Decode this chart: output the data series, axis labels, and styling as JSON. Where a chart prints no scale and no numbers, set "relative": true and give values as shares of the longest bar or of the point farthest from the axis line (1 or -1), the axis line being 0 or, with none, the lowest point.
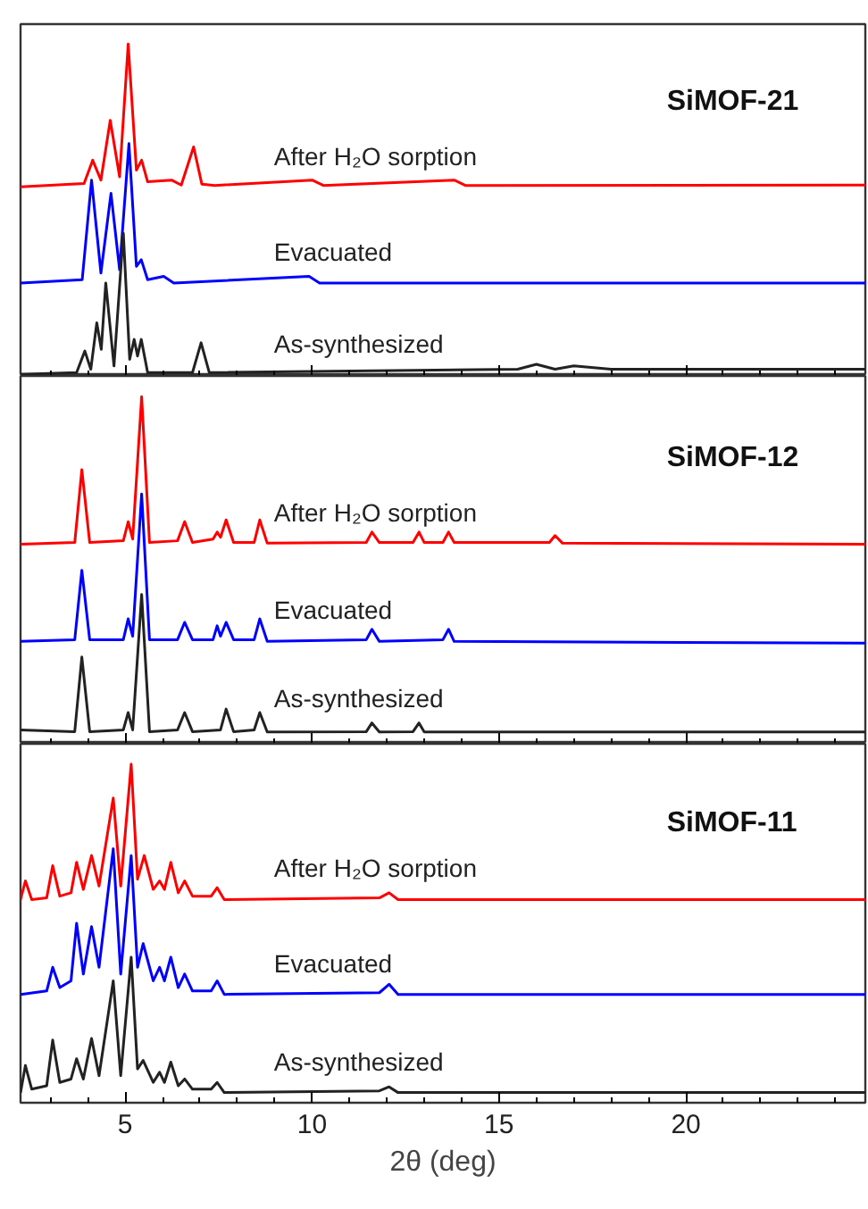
{
  "chart_data": [
    {
      "type": "line",
      "title": "SiMOF-21",
      "relative": true,
      "tick_labels": false,
      "xlim": [
        2.2,
        24.8
      ],
      "xticks": [
        {
          "value": 3,
          "label": null
        },
        {
          "value": 4,
          "label": null
        },
        5,
        {
          "value": 6,
          "label": null
        },
        {
          "value": 7,
          "label": null
        },
        {
          "value": 8,
          "label": null
        },
        {
          "value": 9,
          "label": null
        },
        10,
        {
          "value": 11,
          "label": null
        },
        {
          "value": 12,
          "label": null
        },
        {
          "value": 13,
          "label": null
        },
        {
          "value": 14,
          "label": null
        },
        15,
        {
          "value": 16,
          "label": null
        },
        {
          "value": 17,
          "label": null
        },
        {
          "value": 18,
          "label": null
        },
        {
          "value": 19,
          "label": null
        },
        20,
        {
          "value": 21,
          "label": null
        },
        {
          "value": 22,
          "label": null
        },
        {
          "value": 23,
          "label": null
        },
        {
          "value": 24,
          "label": null
        }
      ],
      "series": [
        {
          "name": "After H₂O sorption",
          "color": "#ff0000",
          "x": [
            2.2,
            3.9,
            4.13,
            4.35,
            4.6,
            4.85,
            5.08,
            5.3,
            5.44,
            5.6,
            6.24,
            6.5,
            6.83,
            7.05,
            7.4,
            10.0,
            10.3,
            13.8,
            14.1,
            24.8
          ],
          "values": [
            0.57,
            0.58,
            0.65,
            0.59,
            0.77,
            0.6,
            1.0,
            0.62,
            0.65,
            0.585,
            0.59,
            0.575,
            0.69,
            0.578,
            0.574,
            0.59,
            0.574,
            0.59,
            0.574,
            0.575
          ]
        },
        {
          "name": "Evacuated",
          "color": "#0000ff",
          "x": [
            2.2,
            3.85,
            4.1,
            4.35,
            4.62,
            4.85,
            5.1,
            5.3,
            5.43,
            5.6,
            6.03,
            6.3,
            9.92,
            10.2,
            24.8
          ],
          "values": [
            0.28,
            0.29,
            0.59,
            0.31,
            0.55,
            0.32,
            0.7,
            0.33,
            0.35,
            0.29,
            0.3,
            0.28,
            0.3,
            0.28,
            0.28
          ]
        },
        {
          "name": "As-synthesized",
          "color": "#222222",
          "x": [
            2.2,
            3.7,
            3.92,
            4.08,
            4.24,
            4.36,
            4.48,
            4.7,
            4.95,
            5.12,
            5.24,
            5.33,
            5.43,
            5.6,
            6.8,
            7.03,
            7.25,
            15.5,
            16.0,
            16.5,
            17.0,
            18.0,
            24.8
          ],
          "values": [
            0.005,
            0.01,
            0.075,
            0.02,
            0.16,
            0.08,
            0.28,
            0.03,
            0.43,
            0.05,
            0.11,
            0.06,
            0.11,
            0.01,
            0.01,
            0.1,
            0.01,
            0.02,
            0.035,
            0.02,
            0.03,
            0.02,
            0.02
          ]
        }
      ]
    },
    {
      "type": "line",
      "title": "SiMOF-12",
      "relative": true,
      "tick_labels": false,
      "xlim": [
        2.2,
        24.8
      ],
      "xticks": [
        {
          "value": 3,
          "label": null
        },
        {
          "value": 4,
          "label": null
        },
        5,
        {
          "value": 6,
          "label": null
        },
        {
          "value": 7,
          "label": null
        },
        {
          "value": 8,
          "label": null
        },
        {
          "value": 9,
          "label": null
        },
        10,
        {
          "value": 11,
          "label": null
        },
        {
          "value": 12,
          "label": null
        },
        {
          "value": 13,
          "label": null
        },
        {
          "value": 14,
          "label": null
        },
        15,
        {
          "value": 16,
          "label": null
        },
        {
          "value": 17,
          "label": null
        },
        {
          "value": 18,
          "label": null
        },
        {
          "value": 19,
          "label": null
        },
        20,
        {
          "value": 21,
          "label": null
        },
        {
          "value": 22,
          "label": null
        },
        {
          "value": 23,
          "label": null
        },
        {
          "value": 24,
          "label": null
        }
      ],
      "series": [
        {
          "name": "After H₂O sorption",
          "color": "#ff0000",
          "x": [
            2.2,
            3.65,
            3.84,
            4.05,
            4.95,
            5.08,
            5.2,
            5.44,
            5.65,
            6.4,
            6.59,
            6.8,
            7.35,
            7.46,
            7.55,
            7.7,
            7.9,
            8.45,
            8.6,
            8.8,
            11.45,
            11.6,
            11.8,
            12.7,
            12.86,
            13.0,
            13.5,
            13.65,
            13.8,
            16.35,
            16.5,
            16.7,
            24.8
          ],
          "values": [
            0.575,
            0.58,
            0.79,
            0.58,
            0.585,
            0.64,
            0.59,
            1.0,
            0.58,
            0.585,
            0.64,
            0.58,
            0.59,
            0.61,
            0.595,
            0.645,
            0.58,
            0.58,
            0.645,
            0.578,
            0.58,
            0.61,
            0.58,
            0.58,
            0.61,
            0.58,
            0.58,
            0.61,
            0.58,
            0.58,
            0.6,
            0.578,
            0.575
          ]
        },
        {
          "name": "Evacuated",
          "color": "#0000ff",
          "x": [
            2.2,
            3.65,
            3.84,
            4.05,
            4.95,
            5.08,
            5.2,
            5.44,
            5.65,
            6.4,
            6.59,
            6.8,
            7.35,
            7.46,
            7.55,
            7.7,
            7.9,
            8.45,
            8.6,
            8.8,
            11.45,
            11.6,
            11.8,
            13.5,
            13.65,
            13.8,
            24.8
          ],
          "values": [
            0.295,
            0.3,
            0.5,
            0.3,
            0.3,
            0.36,
            0.31,
            0.72,
            0.3,
            0.3,
            0.35,
            0.3,
            0.3,
            0.34,
            0.31,
            0.35,
            0.3,
            0.3,
            0.36,
            0.295,
            0.3,
            0.33,
            0.295,
            0.3,
            0.33,
            0.295,
            0.29
          ]
        },
        {
          "name": "As-synthesized",
          "color": "#222222",
          "x": [
            2.2,
            3.65,
            3.84,
            4.05,
            4.95,
            5.08,
            5.2,
            5.44,
            5.65,
            6.4,
            6.59,
            6.8,
            7.55,
            7.7,
            7.9,
            8.45,
            8.6,
            8.8,
            11.45,
            11.6,
            11.8,
            12.7,
            12.86,
            13.0,
            24.8
          ],
          "values": [
            0.04,
            0.035,
            0.25,
            0.035,
            0.04,
            0.09,
            0.04,
            0.43,
            0.035,
            0.04,
            0.09,
            0.035,
            0.04,
            0.1,
            0.035,
            0.04,
            0.09,
            0.034,
            0.035,
            0.06,
            0.034,
            0.035,
            0.06,
            0.034,
            0.034
          ]
        }
      ]
    },
    {
      "type": "line",
      "title": "SiMOF-11",
      "relative": true,
      "tick_labels": "x",
      "xlabel": "2θ (deg)",
      "xlim": [
        2.2,
        24.8
      ],
      "xticks": [
        {
          "value": 3,
          "label": null
        },
        {
          "value": 4,
          "label": null
        },
        5,
        {
          "value": 6,
          "label": null
        },
        {
          "value": 7,
          "label": null
        },
        {
          "value": 8,
          "label": null
        },
        {
          "value": 9,
          "label": null
        },
        10,
        {
          "value": 11,
          "label": null
        },
        {
          "value": 12,
          "label": null
        },
        {
          "value": 13,
          "label": null
        },
        {
          "value": 14,
          "label": null
        },
        15,
        {
          "value": 16,
          "label": null
        },
        {
          "value": 17,
          "label": null
        },
        {
          "value": 18,
          "label": null
        },
        {
          "value": 19,
          "label": null
        },
        20,
        {
          "value": 21,
          "label": null
        },
        {
          "value": 22,
          "label": null
        },
        {
          "value": 23,
          "label": null
        },
        {
          "value": 24,
          "label": null
        }
      ],
      "series": [
        {
          "name": "After H₂O sorption",
          "color": "#ff0000",
          "x": [
            2.2,
            2.33,
            2.5,
            2.9,
            3.06,
            3.25,
            3.55,
            3.7,
            3.88,
            4.1,
            4.3,
            4.68,
            4.88,
            5.16,
            5.33,
            5.51,
            5.75,
            5.92,
            6.05,
            6.22,
            6.42,
            6.59,
            6.8,
            7.3,
            7.46,
            7.65,
            11.8,
            12.06,
            12.3,
            24.8
          ],
          "values": [
            0.6,
            0.655,
            0.6,
            0.605,
            0.7,
            0.61,
            0.62,
            0.71,
            0.63,
            0.73,
            0.64,
            0.9,
            0.64,
            1.0,
            0.66,
            0.73,
            0.63,
            0.655,
            0.63,
            0.71,
            0.62,
            0.655,
            0.61,
            0.61,
            0.635,
            0.6,
            0.605,
            0.62,
            0.6,
            0.6
          ]
        },
        {
          "name": "Evacuated",
          "color": "#0000ff",
          "x": [
            2.2,
            2.9,
            3.06,
            3.25,
            3.55,
            3.7,
            3.88,
            4.1,
            4.3,
            4.68,
            4.88,
            5.16,
            5.33,
            5.48,
            5.75,
            5.92,
            6.05,
            6.22,
            6.42,
            6.59,
            6.8,
            7.3,
            7.46,
            7.65,
            11.8,
            12.06,
            12.3,
            24.8
          ],
          "values": [
            0.32,
            0.33,
            0.4,
            0.34,
            0.36,
            0.53,
            0.38,
            0.52,
            0.4,
            0.75,
            0.38,
            0.73,
            0.4,
            0.47,
            0.36,
            0.4,
            0.36,
            0.43,
            0.34,
            0.38,
            0.33,
            0.33,
            0.36,
            0.32,
            0.325,
            0.35,
            0.32,
            0.32
          ]
        },
        {
          "name": "As-synthesized",
          "color": "#222222",
          "x": [
            2.2,
            2.33,
            2.5,
            2.9,
            3.06,
            3.25,
            3.55,
            3.7,
            3.88,
            4.1,
            4.3,
            4.68,
            4.88,
            5.16,
            5.33,
            5.48,
            5.75,
            5.92,
            6.05,
            6.22,
            6.42,
            6.59,
            6.8,
            7.3,
            7.46,
            7.65,
            11.8,
            12.06,
            12.3,
            24.8
          ],
          "values": [
            0.03,
            0.11,
            0.04,
            0.05,
            0.185,
            0.06,
            0.07,
            0.13,
            0.07,
            0.19,
            0.08,
            0.36,
            0.08,
            0.43,
            0.1,
            0.125,
            0.06,
            0.09,
            0.06,
            0.12,
            0.05,
            0.07,
            0.04,
            0.04,
            0.06,
            0.03,
            0.035,
            0.047,
            0.03,
            0.03
          ]
        }
      ]
    }
  ]
}
